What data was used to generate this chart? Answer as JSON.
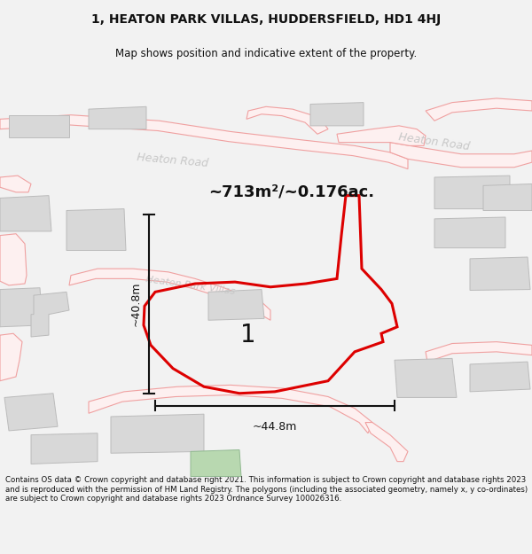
{
  "title_line1": "1, HEATON PARK VILLAS, HUDDERSFIELD, HD1 4HJ",
  "title_line2": "Map shows position and indicative extent of the property.",
  "area_text": "~713m²/~0.176ac.",
  "width_label": "~44.8m",
  "height_label": "~40.8m",
  "number_label": "1",
  "footer_text": "Contains OS data © Crown copyright and database right 2021. This information is subject to Crown copyright and database rights 2023 and is reproduced with the permission of HM Land Registry. The polygons (including the associated geometry, namely x, y co-ordinates) are subject to Crown copyright and database rights 2023 Ordnance Survey 100026316.",
  "bg_color": "#f2f2f2",
  "map_bg": "#ffffff",
  "road_edge": "#f0a0a0",
  "road_fill": "#fdf0f0",
  "building_fill": "#d8d8d8",
  "building_edge": "#bbbbbb",
  "plot_color": "#dd0000",
  "plot_lw": 2.2,
  "dim_color": "#111111",
  "road_label_color": "#c8c8c8",
  "green_fill": "#b8d8b0",
  "title_fs": 10,
  "sub_fs": 8.5,
  "footer_fs": 6.2
}
